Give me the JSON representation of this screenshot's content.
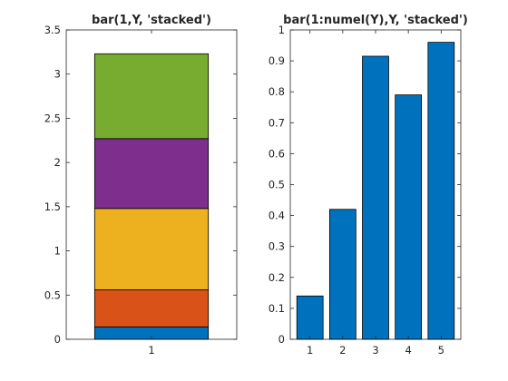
{
  "chart_data": [
    {
      "type": "bar",
      "stacked": true,
      "title": "bar(1,Y, 'stacked')",
      "xlabel": "",
      "ylabel": "",
      "categories": [
        "1"
      ],
      "series": [
        {
          "values": [
            0.14
          ],
          "color": "#0072BD"
        },
        {
          "values": [
            0.42
          ],
          "color": "#D95319"
        },
        {
          "values": [
            0.92
          ],
          "color": "#EDB120"
        },
        {
          "values": [
            0.79
          ],
          "color": "#7E2F8E"
        },
        {
          "values": [
            0.96
          ],
          "color": "#77AC30"
        }
      ],
      "ylim": [
        0,
        3.5
      ],
      "yticks": [
        "0",
        "0.5",
        "1",
        "1.5",
        "2",
        "2.5",
        "3",
        "3.5"
      ],
      "grid": false
    },
    {
      "type": "bar",
      "stacked": true,
      "title": "bar(1:numel(Y),Y, 'stacked')",
      "xlabel": "",
      "ylabel": "",
      "categories": [
        "1",
        "2",
        "3",
        "4",
        "5"
      ],
      "values": [
        0.14,
        0.42,
        0.915,
        0.79,
        0.96
      ],
      "color": "#0072BD",
      "ylim": [
        0,
        1
      ],
      "yticks": [
        "0",
        "0.1",
        "0.2",
        "0.3",
        "0.4",
        "0.5",
        "0.6",
        "0.7",
        "0.8",
        "0.9",
        "1"
      ],
      "grid": false
    }
  ]
}
